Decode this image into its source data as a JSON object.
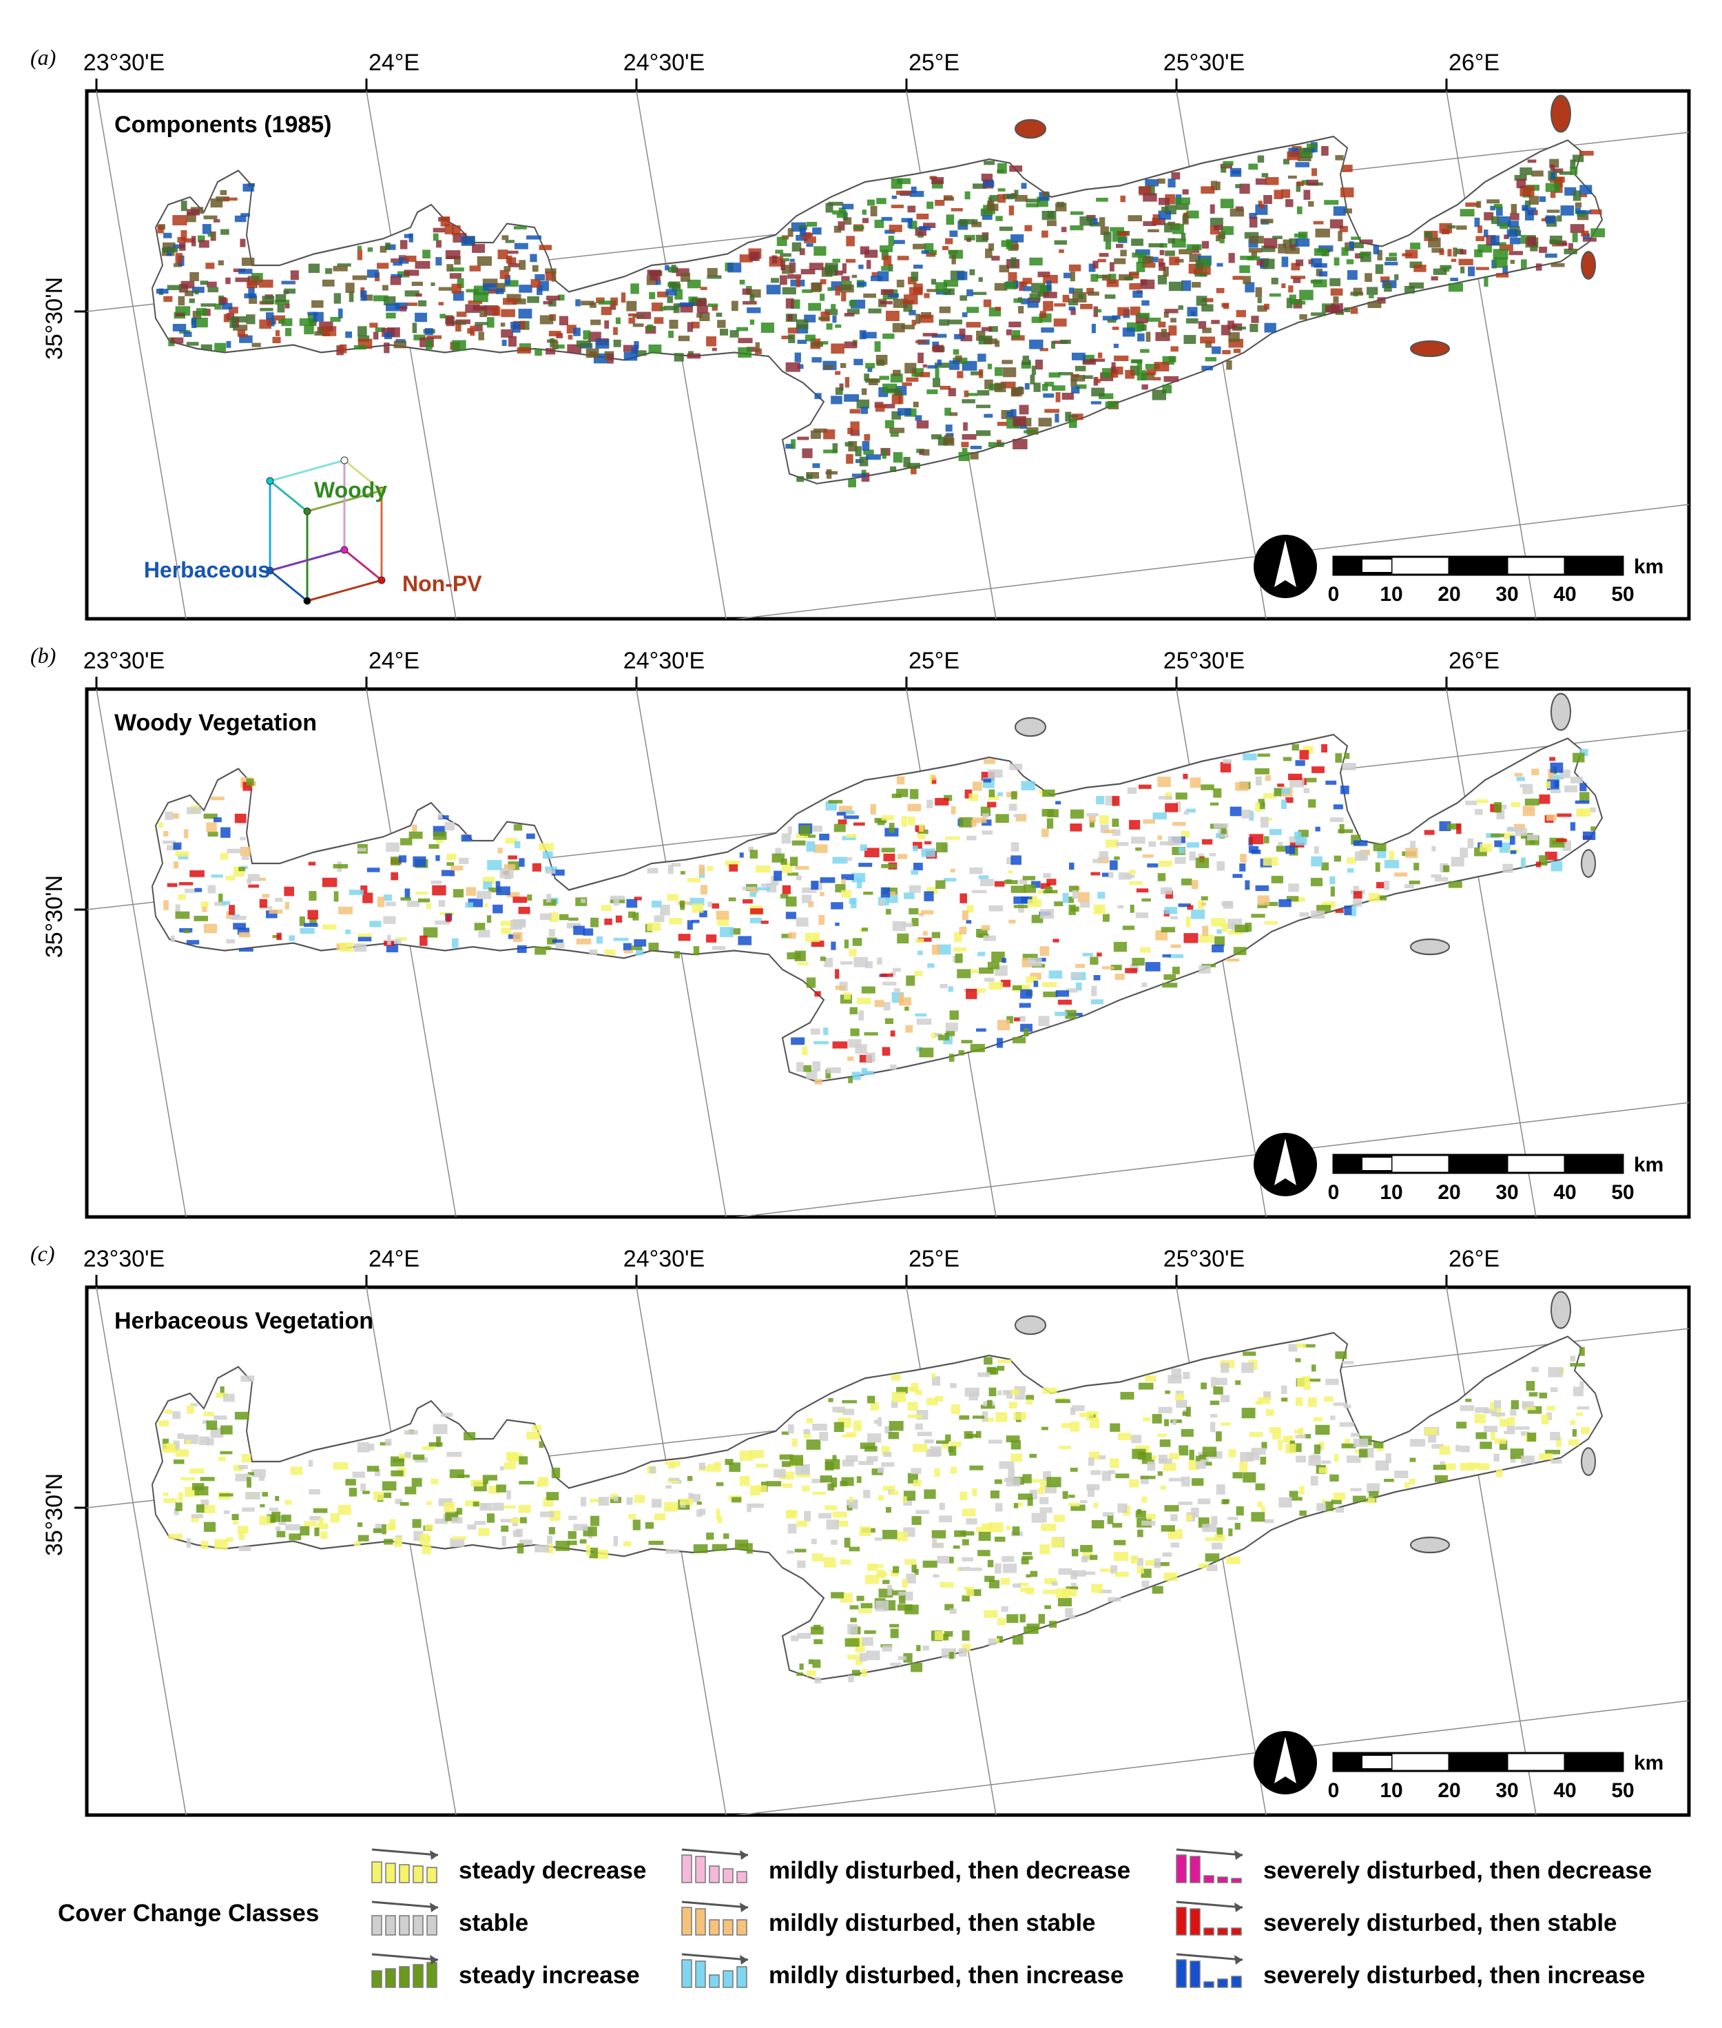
{
  "colors": {
    "frame": "#000000",
    "grid": "#8a8a8a",
    "coast": "#555555",
    "woody": "#2f8a1f",
    "herbaceous": "#1456b4",
    "nonpv": "#b03a1a",
    "steady_decrease": "#f4f36a",
    "stable": "#cfcfcf",
    "steady_increase": "#6a9a1a",
    "mild_decrease": "#f5b8d8",
    "mild_stable": "#f5c27a",
    "mild_increase": "#7fd6f0",
    "severe_decrease": "#e0179a",
    "severe_stable": "#e01010",
    "severe_increase": "#1450d0"
  },
  "longitude_labels": [
    "23°30'E",
    "24°E",
    "24°30'E",
    "25°E",
    "25°30'E",
    "26°E"
  ],
  "latitude_label": "35°30'N",
  "panels": [
    {
      "letter": "(a)",
      "title": "Components (1985)",
      "style": "components"
    },
    {
      "letter": "(b)",
      "title": "Woody Vegetation",
      "style": "woody"
    },
    {
      "letter": "(c)",
      "title": "Herbaceous Vegetation",
      "style": "herbaceous"
    }
  ],
  "component_legend": {
    "woody": "Woody",
    "herbaceous": "Herbaceous",
    "nonpv": "Non-PV"
  },
  "scale_bar": {
    "unit": "km",
    "ticks": [
      "0",
      "10",
      "20",
      "30",
      "40",
      "50"
    ]
  },
  "north_arrow_icon": "north-arrow-icon",
  "legend": {
    "title": "Cover Change Classes",
    "classes": [
      {
        "key": "steady_decrease",
        "label": "steady decrease",
        "icon": "steady-decrease-icon"
      },
      {
        "key": "stable",
        "label": "stable",
        "icon": "stable-icon"
      },
      {
        "key": "steady_increase",
        "label": "steady increase",
        "icon": "steady-increase-icon"
      },
      {
        "key": "mild_decrease",
        "label": "mildly disturbed, then decrease",
        "icon": "mild-decrease-icon"
      },
      {
        "key": "mild_stable",
        "label": "mildly disturbed, then stable",
        "icon": "mild-stable-icon"
      },
      {
        "key": "mild_increase",
        "label": "mildly disturbed, then increase",
        "icon": "mild-increase-icon"
      },
      {
        "key": "severe_decrease",
        "label": "severely disturbed, then decrease",
        "icon": "severe-decrease-icon"
      },
      {
        "key": "severe_stable",
        "label": "severely disturbed, then stable",
        "icon": "severe-stable-icon"
      },
      {
        "key": "severe_increase",
        "label": "severely disturbed, then increase",
        "icon": "severe-increase-icon"
      }
    ]
  }
}
